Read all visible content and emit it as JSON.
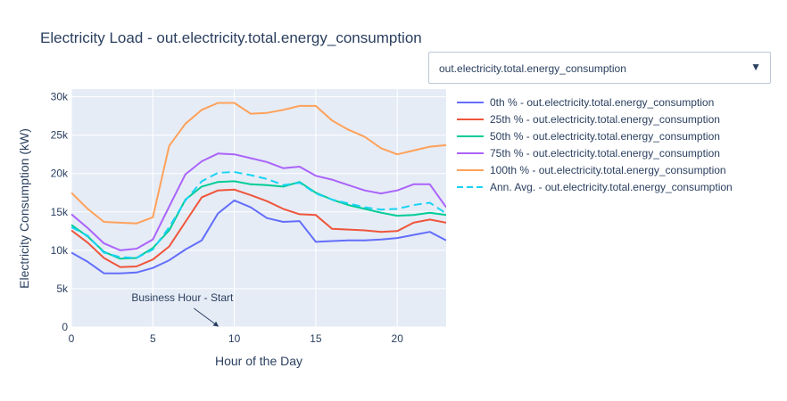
{
  "title": "Electricity Load - out.electricity.total.energy_consumption",
  "dropdown": {
    "selected": "out.electricity.total.energy_consumption",
    "arrow_icon": "triangle-down-icon"
  },
  "chart_data": {
    "type": "line",
    "title": "Electricity Load - out.electricity.total.energy_consumption",
    "xlabel": "Hour of the Day",
    "ylabel": "Electricity Consumption (kW)",
    "xlim": [
      0,
      23
    ],
    "ylim": [
      0,
      31000
    ],
    "x_ticks": [
      0,
      5,
      10,
      15,
      20
    ],
    "x_tick_labels": [
      "0",
      "5",
      "10",
      "15",
      "20"
    ],
    "y_ticks": [
      0,
      5000,
      10000,
      15000,
      20000,
      25000,
      30000
    ],
    "y_tick_labels": [
      "0",
      "5k",
      "10k",
      "15k",
      "20k",
      "25k",
      "30k"
    ],
    "grid": true,
    "legend_position": "right",
    "x": [
      0,
      1,
      2,
      3,
      4,
      5,
      6,
      7,
      8,
      9,
      10,
      11,
      12,
      13,
      14,
      15,
      16,
      17,
      18,
      19,
      20,
      21,
      22,
      23
    ],
    "series": [
      {
        "name": "0th % - out.electricity.total.energy_consumption",
        "color": "#636efa",
        "dash": "solid",
        "values": [
          9700,
          8500,
          7000,
          7000,
          7100,
          7700,
          8700,
          10100,
          11300,
          14800,
          16500,
          15600,
          14200,
          13700,
          13800,
          11100,
          11200,
          11300,
          11300,
          11400,
          11600,
          12000,
          12400,
          11300
        ]
      },
      {
        "name": "25th % - out.electricity.total.energy_consumption",
        "color": "#ef553b",
        "dash": "solid",
        "values": [
          12600,
          11000,
          9000,
          7800,
          7900,
          8800,
          10500,
          13700,
          16900,
          17800,
          17900,
          17200,
          16400,
          15400,
          14700,
          14600,
          12800,
          12700,
          12600,
          12400,
          12500,
          13600,
          14000,
          13600
        ]
      },
      {
        "name": "50th % - out.electricity.total.energy_consumption",
        "color": "#00cc96",
        "dash": "solid",
        "values": [
          13300,
          11800,
          9800,
          8900,
          9000,
          10300,
          12600,
          16600,
          18300,
          18900,
          19000,
          18600,
          18500,
          18300,
          18900,
          17500,
          16600,
          15900,
          15400,
          14900,
          14500,
          14600,
          14900,
          14600
        ]
      },
      {
        "name": "75th % - out.electricity.total.energy_consumption",
        "color": "#ab63fa",
        "dash": "solid",
        "values": [
          14700,
          12900,
          10900,
          10000,
          10200,
          11400,
          15700,
          19900,
          21600,
          22600,
          22500,
          22000,
          21500,
          20700,
          20900,
          19700,
          19200,
          18500,
          17800,
          17400,
          17800,
          18600,
          18600,
          15600
        ]
      },
      {
        "name": "100th % - out.electricity.total.energy_consumption",
        "color": "#ffa15a",
        "dash": "solid",
        "values": [
          17500,
          15400,
          13700,
          13600,
          13500,
          14300,
          23600,
          26500,
          28300,
          29200,
          29200,
          27800,
          27900,
          28300,
          28800,
          28800,
          26900,
          25700,
          24800,
          23300,
          22500,
          23000,
          23500,
          23700
        ]
      },
      {
        "name": "Ann. Avg. - out.electricity.total.energy_consumption",
        "color": "#19d3f3",
        "dash": "dash",
        "values": [
          13000,
          11900,
          9700,
          9100,
          9000,
          10100,
          13000,
          16500,
          19000,
          20100,
          20200,
          19800,
          19300,
          18500,
          18800,
          17400,
          16600,
          16100,
          15600,
          15300,
          15400,
          15900,
          16200,
          14800
        ]
      }
    ],
    "annotations": [
      {
        "text": "Business Hour - Start",
        "x": 9,
        "y": 0
      }
    ]
  }
}
